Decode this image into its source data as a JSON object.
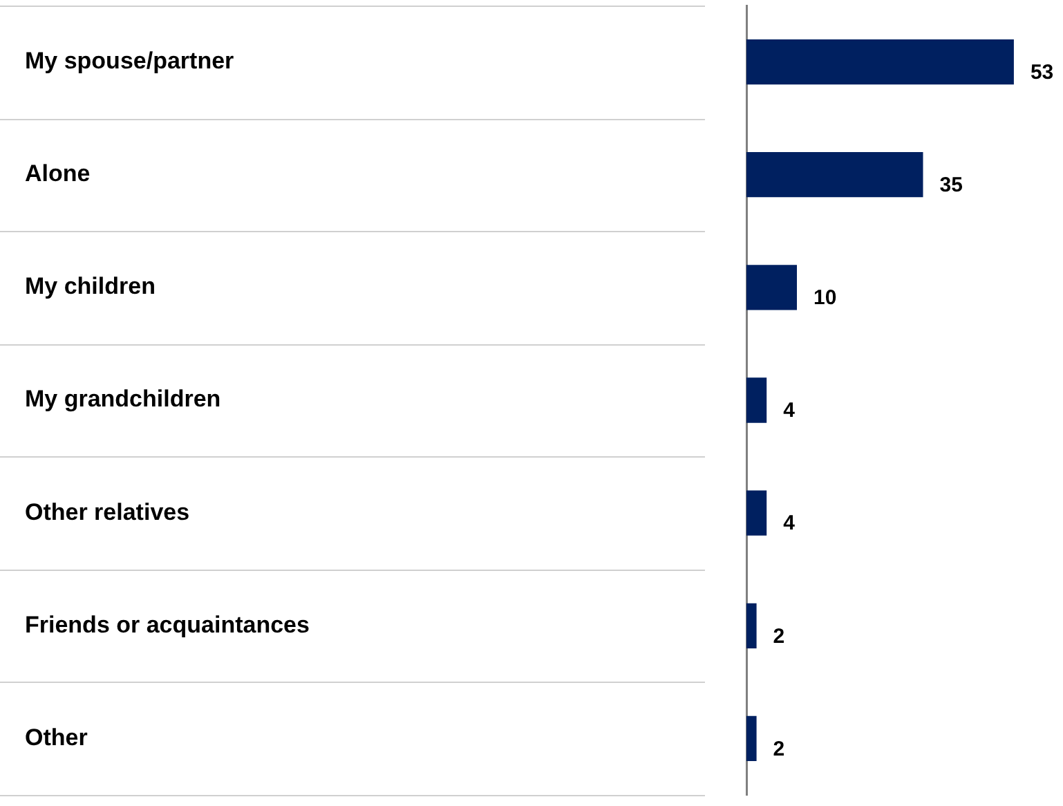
{
  "chart_data": {
    "type": "bar",
    "orientation": "horizontal",
    "categories": [
      "My spouse/partner",
      "Alone",
      "My children",
      "My grandchildren",
      "Other relatives",
      "Friends or acquaintances",
      "Other"
    ],
    "values": [
      53,
      35,
      10,
      4,
      4,
      2,
      2
    ],
    "color": "#002060",
    "data_labels": true,
    "legend": false
  }
}
